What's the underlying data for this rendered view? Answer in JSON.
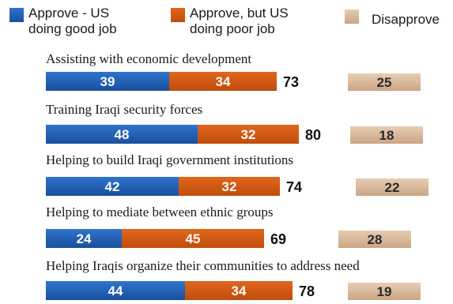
{
  "chart_data": {
    "type": "bar",
    "orientation": "horizontal",
    "stacked": true,
    "categories": [
      "Assisting with economic development",
      "Training Iraqi security forces",
      "Helping to build Iraqi government institutions",
      "Helping to mediate between ethnic groups",
      "Helping Iraqis organize their communities to address need"
    ],
    "series": [
      {
        "name": "Approve - US doing good job",
        "legend_lines": [
          "Approve - US",
          "doing good job"
        ],
        "color": "#1f5fb5",
        "values": [
          39,
          48,
          42,
          24,
          44
        ]
      },
      {
        "name": "Approve, but US doing poor job",
        "legend_lines": [
          "Approve, but US",
          "doing poor job"
        ],
        "color": "#d4570f",
        "values": [
          34,
          32,
          32,
          45,
          34
        ]
      }
    ],
    "totals": [
      73,
      80,
      74,
      69,
      78
    ],
    "disapprove": {
      "name": "Disapprove",
      "legend_lines": [
        "Disapprove"
      ],
      "color": "#d9b89a",
      "values": [
        25,
        18,
        22,
        28,
        19
      ]
    },
    "legend_position": "top",
    "grid": false
  }
}
